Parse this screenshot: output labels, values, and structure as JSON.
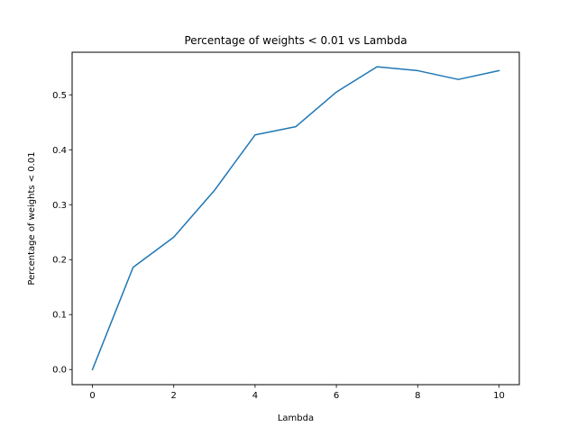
{
  "chart_data": {
    "type": "line",
    "title": "Percentage of weights < 0.01 vs Lambda",
    "xlabel": "Lambda",
    "ylabel": "Percentage of weights < 0.01",
    "xlim": [
      -0.5,
      10.5
    ],
    "ylim": [
      -0.0275,
      0.5775
    ],
    "xticks": [
      0,
      2,
      4,
      6,
      8,
      10
    ],
    "xtick_labels": [
      "0",
      "2",
      "4",
      "6",
      "8",
      "10"
    ],
    "yticks": [
      0.0,
      0.1,
      0.2,
      0.3,
      0.4,
      0.5
    ],
    "ytick_labels": [
      "0.0",
      "0.1",
      "0.2",
      "0.3",
      "0.4",
      "0.5"
    ],
    "grid": false,
    "series": [
      {
        "color": "#1f77b4",
        "x": [
          0,
          1,
          2,
          3,
          4,
          5,
          6,
          7,
          8,
          9,
          10
        ],
        "values": [
          0.0,
          0.186,
          0.241,
          0.326,
          0.427,
          0.442,
          0.505,
          0.551,
          0.544,
          0.528,
          0.544
        ]
      }
    ]
  }
}
